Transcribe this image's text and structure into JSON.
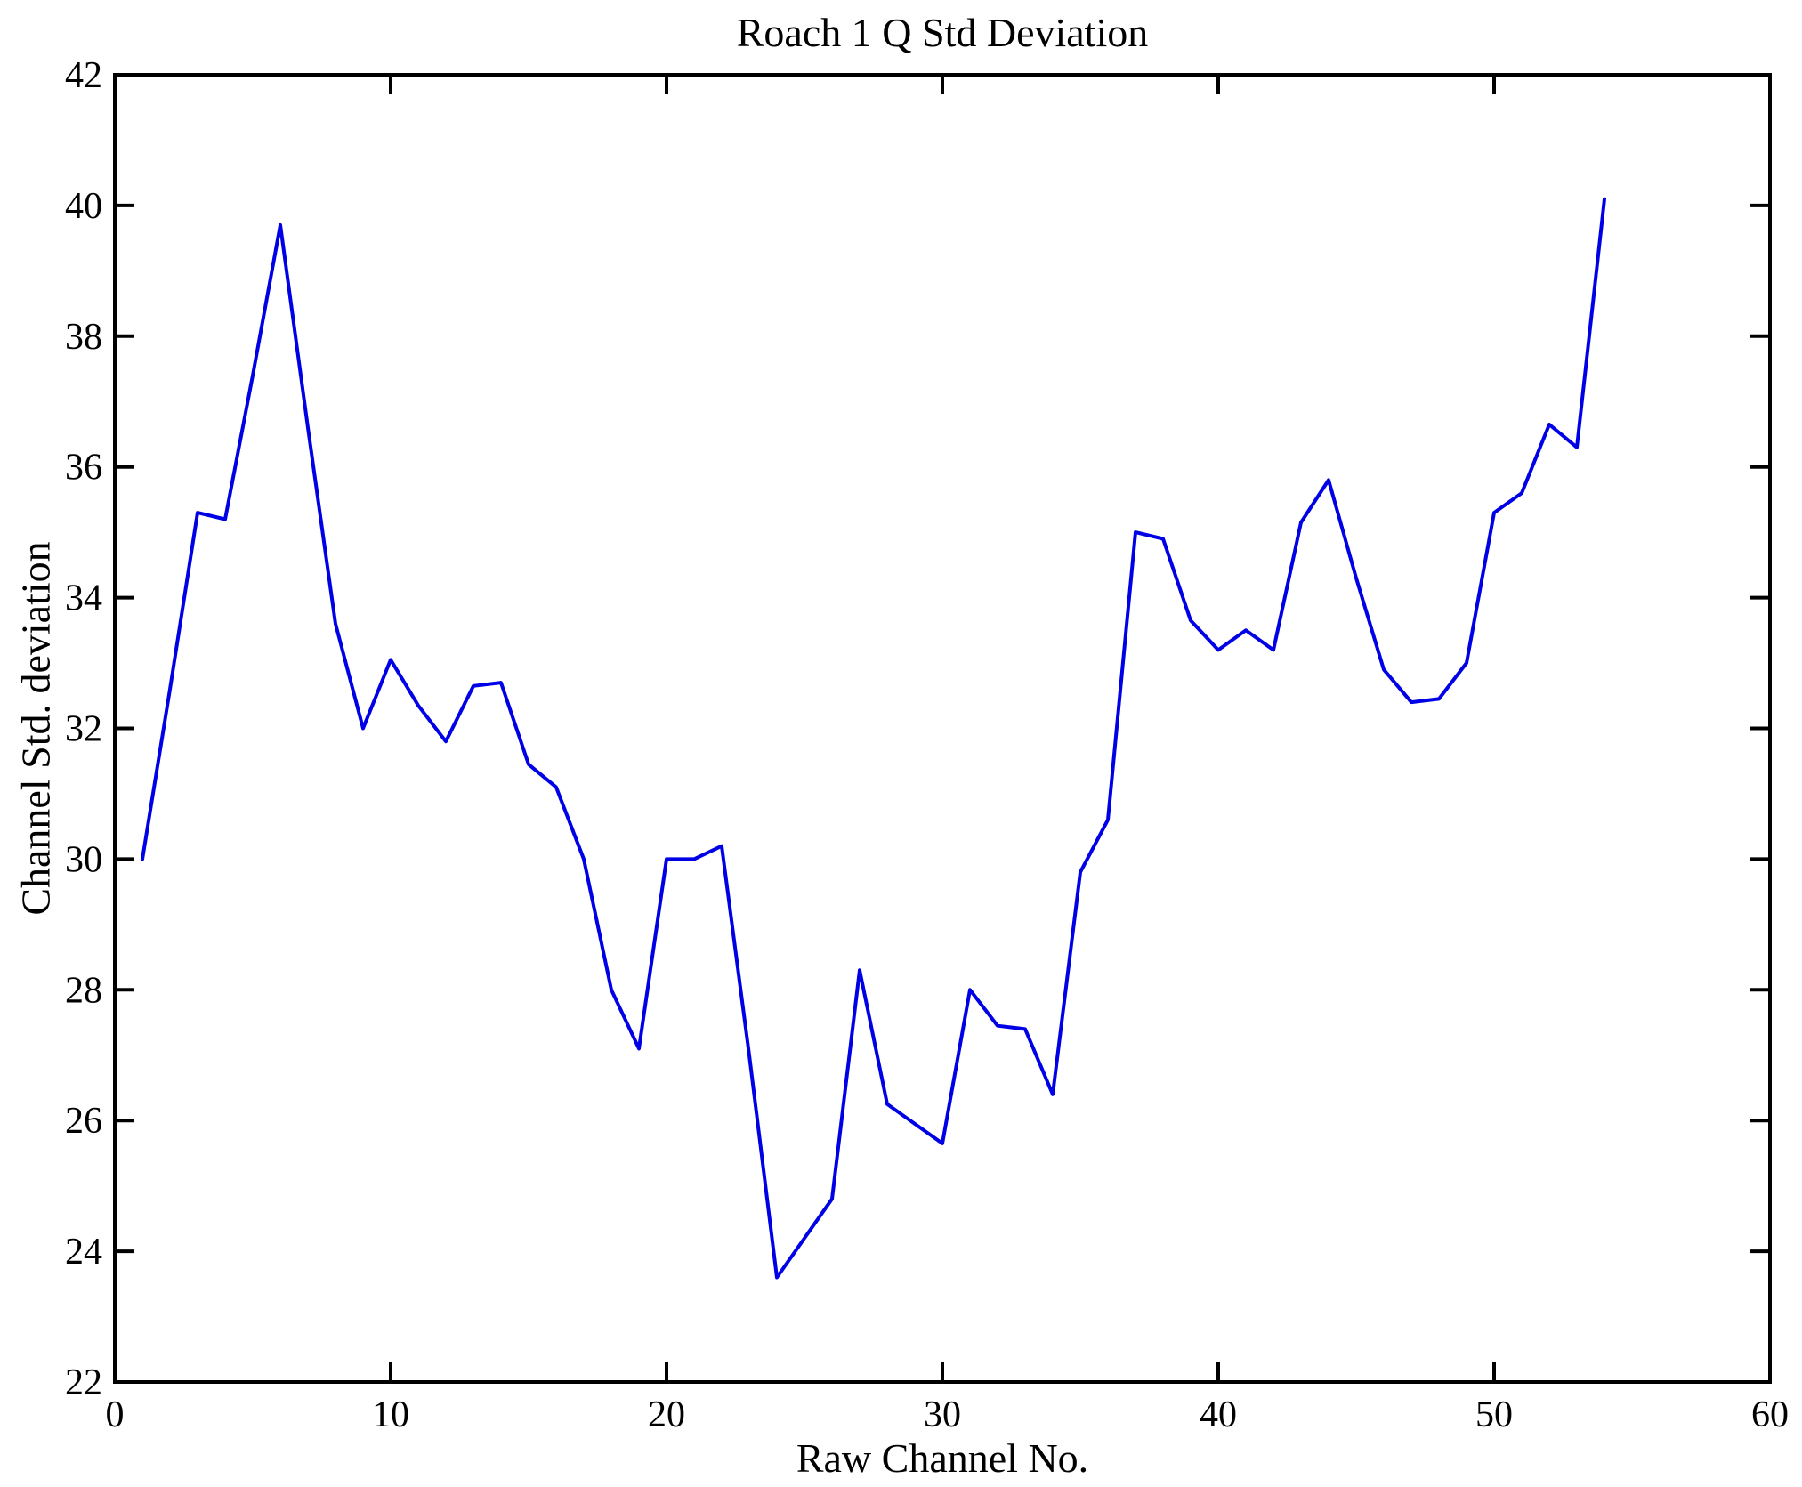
{
  "chart_data": {
    "type": "line",
    "title": "Roach 1 Q Std Deviation",
    "xlabel": "Raw Channel No.",
    "ylabel": "Channel Std. deviation",
    "x": [
      1,
      2,
      3,
      4,
      5,
      6,
      7,
      8,
      9,
      10,
      11,
      12,
      13,
      14,
      15,
      16,
      17,
      18,
      19,
      20,
      21,
      22,
      23,
      24,
      25,
      26,
      27,
      28,
      29,
      30,
      31,
      32,
      33,
      34,
      35,
      36,
      37,
      38,
      39,
      40,
      41,
      42,
      43,
      44,
      45,
      46,
      47,
      48,
      49,
      50,
      51,
      52,
      53,
      54
    ],
    "y": [
      30.0,
      32.6,
      35.3,
      35.2,
      37.4,
      39.7,
      36.6,
      33.6,
      32.0,
      33.05,
      32.35,
      31.8,
      32.65,
      32.7,
      31.45,
      31.1,
      30.0,
      28.0,
      27.1,
      30.0,
      30.0,
      30.2,
      27.0,
      23.6,
      24.2,
      24.8,
      28.3,
      26.25,
      25.95,
      25.65,
      28.0,
      27.45,
      27.4,
      26.4,
      29.8,
      30.6,
      35.0,
      34.9,
      33.65,
      33.2,
      33.5,
      33.2,
      35.15,
      35.8,
      34.3,
      32.9,
      32.4,
      32.45,
      33.0,
      35.3,
      35.6,
      36.65,
      36.3,
      40.1
    ],
    "xlim": [
      0,
      60
    ],
    "ylim": [
      22,
      42
    ],
    "xticks": [
      0,
      10,
      20,
      30,
      40,
      50,
      60
    ],
    "yticks": [
      22,
      24,
      26,
      28,
      30,
      32,
      34,
      36,
      38,
      40,
      42
    ],
    "line_color": "#0000E6",
    "axis_color": "#000000",
    "grid": false,
    "legend_position": "none"
  }
}
